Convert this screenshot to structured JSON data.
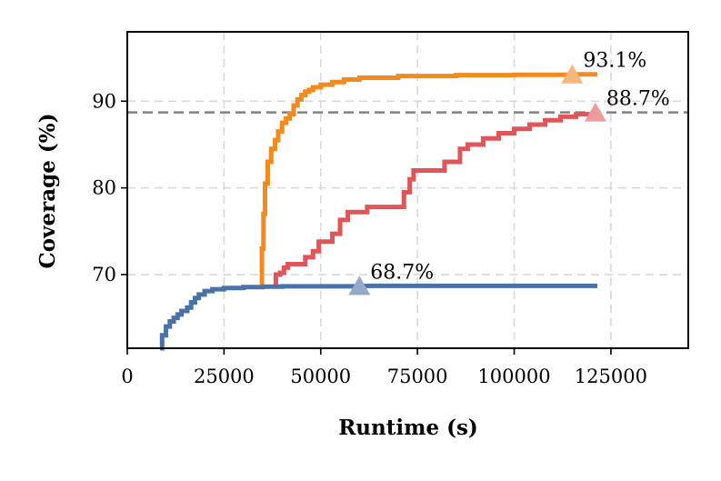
{
  "chart_data": {
    "type": "line",
    "xlabel": "Runtime (s)",
    "ylabel": "Coverage (%)",
    "xlim": [
      0,
      145000
    ],
    "ylim": [
      61.5,
      98
    ],
    "x_ticks": [
      0,
      25000,
      50000,
      75000,
      100000,
      125000
    ],
    "y_ticks": [
      70,
      80,
      90
    ],
    "x_tick_labels": [
      "0",
      "25000",
      "50000",
      "75000",
      "100000",
      "125000"
    ],
    "y_tick_labels": [
      "70",
      "80",
      "90"
    ],
    "grid": true,
    "reference_line": {
      "y": 88.7,
      "style": "dashed",
      "color": "#808080"
    },
    "series": [
      {
        "color": "#f28a1d",
        "marker_color": "#f6b67c",
        "points": [
          [
            34500,
            68.9
          ],
          [
            34800,
            73
          ],
          [
            35200,
            77
          ],
          [
            35600,
            80.5
          ],
          [
            36300,
            83
          ],
          [
            37200,
            84.5
          ],
          [
            38200,
            85.5
          ],
          [
            39000,
            86.5
          ],
          [
            40000,
            87.5
          ],
          [
            41000,
            88
          ],
          [
            42000,
            88.5
          ],
          [
            43000,
            89.5
          ],
          [
            44000,
            90.2
          ],
          [
            45000,
            90.7
          ],
          [
            46000,
            91.1
          ],
          [
            47000,
            91.3
          ],
          [
            48000,
            91.6
          ],
          [
            50000,
            91.9
          ],
          [
            53000,
            92.2
          ],
          [
            56000,
            92.5
          ],
          [
            60000,
            92.7
          ],
          [
            70000,
            92.9
          ],
          [
            85000,
            93
          ],
          [
            100000,
            93.05
          ],
          [
            115000,
            93.1
          ],
          [
            121500,
            93.1
          ]
        ],
        "end_marker": [
          115000,
          93.1
        ],
        "end_label": "93.1%"
      },
      {
        "color": "#e05559",
        "marker_color": "#ee9b9d",
        "points": [
          [
            38200,
            68.7
          ],
          [
            38400,
            70
          ],
          [
            39500,
            70.2
          ],
          [
            40500,
            70.8
          ],
          [
            41500,
            71.2
          ],
          [
            44000,
            71.2
          ],
          [
            46000,
            72
          ],
          [
            48000,
            72.7
          ],
          [
            49500,
            73.8
          ],
          [
            51000,
            73.8
          ],
          [
            53000,
            74.7
          ],
          [
            55000,
            76.3
          ],
          [
            57000,
            77.2
          ],
          [
            62000,
            77.8
          ],
          [
            70000,
            77.8
          ],
          [
            71500,
            79.5
          ],
          [
            73000,
            81
          ],
          [
            74000,
            82
          ],
          [
            80000,
            82
          ],
          [
            82000,
            83
          ],
          [
            84000,
            83
          ],
          [
            86000,
            84.5
          ],
          [
            88000,
            85
          ],
          [
            92000,
            85.7
          ],
          [
            96000,
            86.3
          ],
          [
            100000,
            86.8
          ],
          [
            104000,
            87.3
          ],
          [
            108000,
            87.8
          ],
          [
            112000,
            88.2
          ],
          [
            116000,
            88.5
          ],
          [
            121000,
            88.7
          ]
        ],
        "end_marker": [
          121000,
          88.7
        ],
        "end_label": "88.7%"
      },
      {
        "color": "#4a72a8",
        "marker_color": "#93a9c8",
        "points": [
          [
            8500,
            61.5
          ],
          [
            9000,
            63
          ],
          [
            10000,
            64
          ],
          [
            11000,
            64.6
          ],
          [
            12000,
            65
          ],
          [
            13000,
            65.4
          ],
          [
            14000,
            65.8
          ],
          [
            15500,
            66.2
          ],
          [
            16500,
            66.8
          ],
          [
            17500,
            67.3
          ],
          [
            18500,
            67.7
          ],
          [
            20000,
            68.1
          ],
          [
            22000,
            68.3
          ],
          [
            25000,
            68.45
          ],
          [
            30000,
            68.55
          ],
          [
            35000,
            68.6
          ],
          [
            40000,
            68.65
          ],
          [
            60000,
            68.7
          ],
          [
            90000,
            68.7
          ],
          [
            121500,
            68.7
          ]
        ],
        "end_marker": [
          60000,
          68.7
        ],
        "end_label": "68.7%"
      }
    ]
  }
}
